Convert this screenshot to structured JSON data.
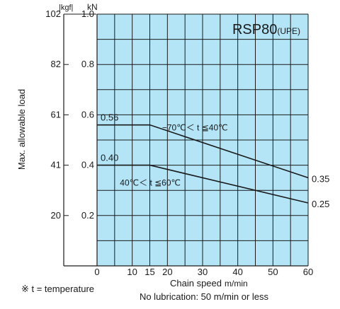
{
  "chart_data": {
    "type": "line",
    "title": "RSP80",
    "title_suffix": "(UPE)",
    "xlabel": "Chain speed",
    "xunit": "m/min",
    "ylabel": "Max. allowable load",
    "y_unit_kn": "kN",
    "y_unit_kgf": "kgf",
    "xlim": [
      0,
      60
    ],
    "ylim": [
      0,
      1.0
    ],
    "x_ticks": [
      0,
      10,
      15,
      20,
      30,
      40,
      50,
      60
    ],
    "x_grid": [
      0,
      5,
      10,
      15,
      20,
      25,
      30,
      35,
      40,
      45,
      50,
      55,
      60
    ],
    "y_grid": [
      0,
      0.1,
      0.2,
      0.3,
      0.4,
      0.5,
      0.6,
      0.7,
      0.8,
      0.9,
      1.0
    ],
    "y_ticks_kn": [
      {
        "v": 1.0,
        "label": "1.0"
      },
      {
        "v": 0.8,
        "label": "0.8"
      },
      {
        "v": 0.6,
        "label": "0.6"
      },
      {
        "v": 0.4,
        "label": "0.4"
      },
      {
        "v": 0.2,
        "label": "0.2"
      }
    ],
    "y_ticks_kgf": [
      {
        "v": 1.0,
        "label": "102"
      },
      {
        "v": 0.8,
        "label": "82"
      },
      {
        "v": 0.6,
        "label": "61"
      },
      {
        "v": 0.4,
        "label": "41"
      },
      {
        "v": 0.2,
        "label": "20"
      }
    ],
    "grid": true,
    "background_color": "#b3e5f7",
    "grid_color": "#1a1a1a",
    "series": [
      {
        "name": "−70℃＜ t ≦40℃",
        "x": [
          0,
          15,
          60
        ],
        "y": [
          0.56,
          0.56,
          0.35
        ],
        "start_label": "0.56",
        "end_label": "0.35"
      },
      {
        "name": "40℃＜ t ≦60℃",
        "x": [
          0,
          15,
          60
        ],
        "y": [
          0.4,
          0.4,
          0.25
        ],
        "start_label": "0.40",
        "end_label": "0.25"
      }
    ]
  },
  "notes": {
    "temperature": "※ t = temperature",
    "lubrication": "No lubrication: 50 m/min or less"
  }
}
